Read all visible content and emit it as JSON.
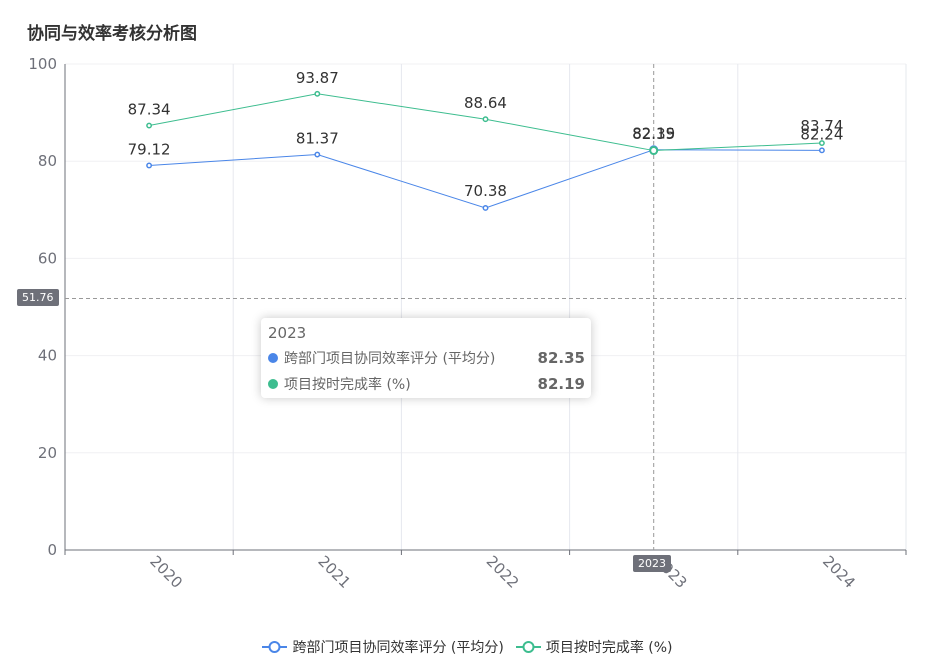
{
  "chart_data": {
    "type": "line",
    "title": "协同与效率考核分析图",
    "x": [
      "2020",
      "2021",
      "2022",
      "2023",
      "2024"
    ],
    "series": [
      {
        "name": "跨部门项目协同效率评分 (平均分)",
        "color": "#4a86e8",
        "values": [
          79.12,
          81.37,
          70.38,
          82.35,
          82.24
        ]
      },
      {
        "name": "项目按时完成率 (%)",
        "color": "#3dbd8f",
        "values": [
          87.34,
          93.87,
          88.64,
          82.19,
          83.74
        ]
      }
    ],
    "ylim": [
      0,
      100
    ],
    "yticks": [
      0,
      20,
      40,
      60,
      80,
      100
    ],
    "grid": true,
    "legend": "bottom",
    "x_tick_rotation": "-45deg"
  },
  "pointer": {
    "y_value": "51.76",
    "x_value": "2023"
  },
  "tooltip": {
    "title": "2023",
    "rows": [
      {
        "name": "跨部门项目协同效率评分 (平均分)",
        "value": "82.35",
        "color": "#4a86e8"
      },
      {
        "name": "项目按时完成率 (%)",
        "value": "82.19",
        "color": "#3dbd8f"
      }
    ]
  }
}
